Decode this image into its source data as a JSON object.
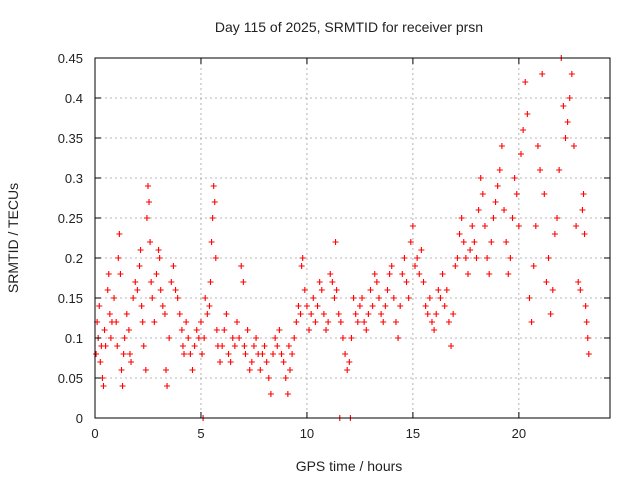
{
  "chart_data": {
    "type": "scatter",
    "title": "Day 115 of 2025, SRMTID for receiver prsn",
    "xlabel": "GPS time / hours",
    "ylabel": "SRMTID / TECUs",
    "xlim": [
      0,
      24.3
    ],
    "ylim": [
      0,
      0.45
    ],
    "xticks": [
      0,
      5,
      10,
      15,
      20
    ],
    "xtick_labels": [
      "0",
      "5",
      "10",
      "15",
      "20"
    ],
    "yticks": [
      0,
      0.05,
      0.1,
      0.15,
      0.2,
      0.25,
      0.3,
      0.35,
      0.4,
      0.45
    ],
    "ytick_labels": [
      "0",
      "0.05",
      "0.1",
      "0.15",
      "0.2",
      "0.25",
      "0.3",
      "0.35",
      "0.4",
      "0.45"
    ],
    "grid": true,
    "marker": "plus",
    "color": "#ff0000",
    "series": [
      {
        "name": "SRMTID",
        "points": [
          [
            0.05,
            0.08
          ],
          [
            0.1,
            0.12
          ],
          [
            0.15,
            0.1
          ],
          [
            0.2,
            0.14
          ],
          [
            0.25,
            0.07
          ],
          [
            0.3,
            0.09
          ],
          [
            0.35,
            0.05
          ],
          [
            0.4,
            0.04
          ],
          [
            0.45,
            0.11
          ],
          [
            0.5,
            0.09
          ],
          [
            0.6,
            0.16
          ],
          [
            0.65,
            0.18
          ],
          [
            0.7,
            0.13
          ],
          [
            0.75,
            0.1
          ],
          [
            0.8,
            0.12
          ],
          [
            0.9,
            0.15
          ],
          [
            1.0,
            0.12
          ],
          [
            1.05,
            0.09
          ],
          [
            1.1,
            0.2
          ],
          [
            1.15,
            0.23
          ],
          [
            1.2,
            0.18
          ],
          [
            1.25,
            0.06
          ],
          [
            1.3,
            0.04
          ],
          [
            1.35,
            0.08
          ],
          [
            1.4,
            0.1
          ],
          [
            1.5,
            0.13
          ],
          [
            1.6,
            0.11
          ],
          [
            1.65,
            0.08
          ],
          [
            1.7,
            0.07
          ],
          [
            1.8,
            0.15
          ],
          [
            1.9,
            0.17
          ],
          [
            2.0,
            0.16
          ],
          [
            2.1,
            0.19
          ],
          [
            2.15,
            0.21
          ],
          [
            2.2,
            0.14
          ],
          [
            2.25,
            0.12
          ],
          [
            2.3,
            0.09
          ],
          [
            2.4,
            0.06
          ],
          [
            2.45,
            0.25
          ],
          [
            2.5,
            0.29
          ],
          [
            2.55,
            0.27
          ],
          [
            2.6,
            0.22
          ],
          [
            2.65,
            0.17
          ],
          [
            2.7,
            0.15
          ],
          [
            2.8,
            0.12
          ],
          [
            2.9,
            0.18
          ],
          [
            3.0,
            0.21
          ],
          [
            3.05,
            0.2
          ],
          [
            3.1,
            0.16
          ],
          [
            3.2,
            0.14
          ],
          [
            3.3,
            0.13
          ],
          [
            3.35,
            0.06
          ],
          [
            3.4,
            0.04
          ],
          [
            3.5,
            0.1
          ],
          [
            3.6,
            0.17
          ],
          [
            3.7,
            0.19
          ],
          [
            3.8,
            0.16
          ],
          [
            3.9,
            0.15
          ],
          [
            4.0,
            0.13
          ],
          [
            4.1,
            0.11
          ],
          [
            4.15,
            0.09
          ],
          [
            4.2,
            0.08
          ],
          [
            4.3,
            0.12
          ],
          [
            4.4,
            0.1
          ],
          [
            4.5,
            0.08
          ],
          [
            4.6,
            0.06
          ],
          [
            4.7,
            0.09
          ],
          [
            4.8,
            0.11
          ],
          [
            4.9,
            0.1
          ],
          [
            5.0,
            0.12
          ],
          [
            5.05,
            0.08
          ],
          [
            5.1,
            0.0
          ],
          [
            5.15,
            0.1
          ],
          [
            5.2,
            0.15
          ],
          [
            5.3,
            0.13
          ],
          [
            5.4,
            0.14
          ],
          [
            5.45,
            0.17
          ],
          [
            5.5,
            0.22
          ],
          [
            5.55,
            0.25
          ],
          [
            5.6,
            0.29
          ],
          [
            5.65,
            0.27
          ],
          [
            5.7,
            0.2
          ],
          [
            5.75,
            0.11
          ],
          [
            5.8,
            0.09
          ],
          [
            5.9,
            0.07
          ],
          [
            6.0,
            0.09
          ],
          [
            6.1,
            0.11
          ],
          [
            6.2,
            0.13
          ],
          [
            6.3,
            0.08
          ],
          [
            6.4,
            0.07
          ],
          [
            6.5,
            0.1
          ],
          [
            6.6,
            0.09
          ],
          [
            6.7,
            0.12
          ],
          [
            6.8,
            0.1
          ],
          [
            6.9,
            0.19
          ],
          [
            7.0,
            0.17
          ],
          [
            7.05,
            0.09
          ],
          [
            7.1,
            0.08
          ],
          [
            7.2,
            0.11
          ],
          [
            7.3,
            0.06
          ],
          [
            7.4,
            0.07
          ],
          [
            7.5,
            0.09
          ],
          [
            7.6,
            0.1
          ],
          [
            7.7,
            0.08
          ],
          [
            7.8,
            0.06
          ],
          [
            7.9,
            0.08
          ],
          [
            8.0,
            0.09
          ],
          [
            8.1,
            0.07
          ],
          [
            8.2,
            0.05
          ],
          [
            8.3,
            0.03
          ],
          [
            8.4,
            0.08
          ],
          [
            8.5,
            0.1
          ],
          [
            8.6,
            0.09
          ],
          [
            8.7,
            0.11
          ],
          [
            8.8,
            0.08
          ],
          [
            8.9,
            0.07
          ],
          [
            9.0,
            0.05
          ],
          [
            9.1,
            0.03
          ],
          [
            9.15,
            0.09
          ],
          [
            9.2,
            0.06
          ],
          [
            9.3,
            0.08
          ],
          [
            9.4,
            0.1
          ],
          [
            9.5,
            0.12
          ],
          [
            9.6,
            0.14
          ],
          [
            9.7,
            0.13
          ],
          [
            9.75,
            0.19
          ],
          [
            9.8,
            0.2
          ],
          [
            9.9,
            0.16
          ],
          [
            10.0,
            0.14
          ],
          [
            10.1,
            0.11
          ],
          [
            10.2,
            0.13
          ],
          [
            10.3,
            0.15
          ],
          [
            10.4,
            0.12
          ],
          [
            10.5,
            0.14
          ],
          [
            10.6,
            0.17
          ],
          [
            10.7,
            0.16
          ],
          [
            10.8,
            0.13
          ],
          [
            10.9,
            0.11
          ],
          [
            11.0,
            0.12
          ],
          [
            11.1,
            0.18
          ],
          [
            11.2,
            0.17
          ],
          [
            11.3,
            0.15
          ],
          [
            11.35,
            0.22
          ],
          [
            11.4,
            0.16
          ],
          [
            11.5,
            0.13
          ],
          [
            11.55,
            0.0
          ],
          [
            11.6,
            0.12
          ],
          [
            11.7,
            0.1
          ],
          [
            11.8,
            0.08
          ],
          [
            11.9,
            0.06
          ],
          [
            12.0,
            0.07
          ],
          [
            12.05,
            0.0
          ],
          [
            12.1,
            0.1
          ],
          [
            12.2,
            0.15
          ],
          [
            12.3,
            0.13
          ],
          [
            12.4,
            0.12
          ],
          [
            12.5,
            0.14
          ],
          [
            12.6,
            0.15
          ],
          [
            12.7,
            0.12
          ],
          [
            12.8,
            0.11
          ],
          [
            12.9,
            0.13
          ],
          [
            13.0,
            0.16
          ],
          [
            13.1,
            0.14
          ],
          [
            13.2,
            0.18
          ],
          [
            13.3,
            0.17
          ],
          [
            13.4,
            0.15
          ],
          [
            13.5,
            0.13
          ],
          [
            13.6,
            0.12
          ],
          [
            13.7,
            0.14
          ],
          [
            13.8,
            0.16
          ],
          [
            13.9,
            0.18
          ],
          [
            14.0,
            0.19
          ],
          [
            14.1,
            0.15
          ],
          [
            14.2,
            0.12
          ],
          [
            14.3,
            0.1
          ],
          [
            14.4,
            0.14
          ],
          [
            14.5,
            0.18
          ],
          [
            14.6,
            0.2
          ],
          [
            14.7,
            0.17
          ],
          [
            14.8,
            0.15
          ],
          [
            14.9,
            0.22
          ],
          [
            15.0,
            0.24
          ],
          [
            15.1,
            0.19
          ],
          [
            15.2,
            0.2
          ],
          [
            15.3,
            0.18
          ],
          [
            15.4,
            0.21
          ],
          [
            15.5,
            0.17
          ],
          [
            15.6,
            0.14
          ],
          [
            15.7,
            0.13
          ],
          [
            15.8,
            0.15
          ],
          [
            15.9,
            0.12
          ],
          [
            16.0,
            0.11
          ],
          [
            16.1,
            0.13
          ],
          [
            16.2,
            0.16
          ],
          [
            16.3,
            0.15
          ],
          [
            16.4,
            0.18
          ],
          [
            16.5,
            0.14
          ],
          [
            16.6,
            0.16
          ],
          [
            16.7,
            0.12
          ],
          [
            16.8,
            0.09
          ],
          [
            16.9,
            0.13
          ],
          [
            17.0,
            0.19
          ],
          [
            17.1,
            0.2
          ],
          [
            17.2,
            0.23
          ],
          [
            17.3,
            0.25
          ],
          [
            17.4,
            0.22
          ],
          [
            17.5,
            0.2
          ],
          [
            17.6,
            0.18
          ],
          [
            17.7,
            0.21
          ],
          [
            17.8,
            0.24
          ],
          [
            17.9,
            0.22
          ],
          [
            18.0,
            0.2
          ],
          [
            18.1,
            0.26
          ],
          [
            18.2,
            0.3
          ],
          [
            18.3,
            0.28
          ],
          [
            18.4,
            0.24
          ],
          [
            18.5,
            0.2
          ],
          [
            18.6,
            0.18
          ],
          [
            18.7,
            0.22
          ],
          [
            18.8,
            0.25
          ],
          [
            18.9,
            0.27
          ],
          [
            19.0,
            0.29
          ],
          [
            19.1,
            0.31
          ],
          [
            19.2,
            0.34
          ],
          [
            19.3,
            0.26
          ],
          [
            19.4,
            0.22
          ],
          [
            19.5,
            0.18
          ],
          [
            19.6,
            0.2
          ],
          [
            19.7,
            0.25
          ],
          [
            19.8,
            0.3
          ],
          [
            19.9,
            0.28
          ],
          [
            20.0,
            0.24
          ],
          [
            20.1,
            0.33
          ],
          [
            20.2,
            0.36
          ],
          [
            20.3,
            0.42
          ],
          [
            20.4,
            0.38
          ],
          [
            20.5,
            0.15
          ],
          [
            20.6,
            0.12
          ],
          [
            20.7,
            0.19
          ],
          [
            20.8,
            0.24
          ],
          [
            20.9,
            0.34
          ],
          [
            21.0,
            0.31
          ],
          [
            21.1,
            0.43
          ],
          [
            21.2,
            0.28
          ],
          [
            21.3,
            0.17
          ],
          [
            21.4,
            0.2
          ],
          [
            21.5,
            0.13
          ],
          [
            21.6,
            0.16
          ],
          [
            21.7,
            0.23
          ],
          [
            21.8,
            0.25
          ],
          [
            21.9,
            0.31
          ],
          [
            22.0,
            0.45
          ],
          [
            22.1,
            0.39
          ],
          [
            22.2,
            0.35
          ],
          [
            22.3,
            0.37
          ],
          [
            22.4,
            0.4
          ],
          [
            22.5,
            0.43
          ],
          [
            22.6,
            0.34
          ],
          [
            22.7,
            0.24
          ],
          [
            22.8,
            0.17
          ],
          [
            22.9,
            0.16
          ],
          [
            23.0,
            0.26
          ],
          [
            23.05,
            0.28
          ],
          [
            23.1,
            0.23
          ],
          [
            23.15,
            0.14
          ],
          [
            23.2,
            0.12
          ],
          [
            23.25,
            0.1
          ],
          [
            23.3,
            0.08
          ]
        ]
      }
    ]
  }
}
